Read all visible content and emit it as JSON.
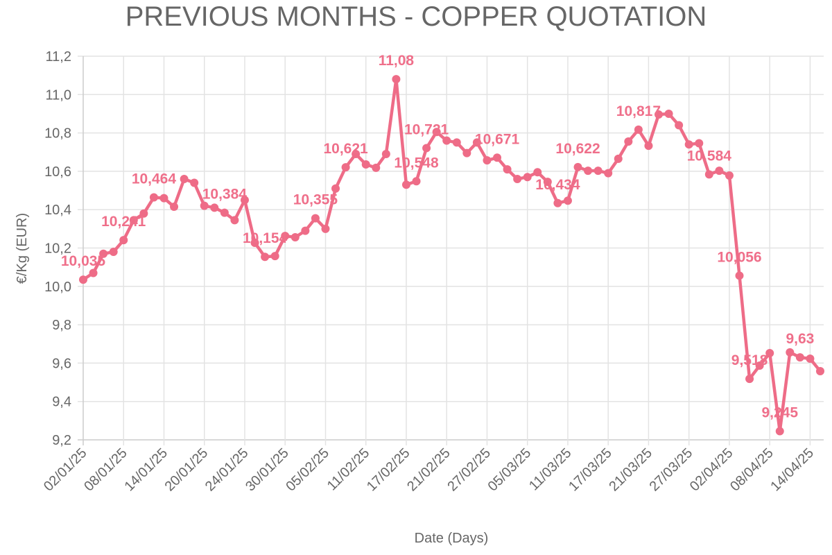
{
  "chart_data": {
    "type": "line",
    "title": "PREVIOUS MONTHS - COPPER QUOTATION",
    "xlabel": "Date (Days)",
    "ylabel": "€/Kg (EUR)",
    "ylim": [
      9.2,
      11.2
    ],
    "yticks": [
      "9,2",
      "9,4",
      "9,6",
      "9,8",
      "10,0",
      "10,2",
      "10,4",
      "10,6",
      "10,8",
      "11,0",
      "11,2"
    ],
    "ytick_values": [
      9.2,
      9.4,
      9.6,
      9.8,
      10.0,
      10.2,
      10.4,
      10.6,
      10.8,
      11.0,
      11.2
    ],
    "grid": true,
    "line_color": "#ee6c87",
    "x": [
      "02/01/25",
      "03/01/25",
      "06/01/25",
      "07/01/25",
      "08/01/25",
      "09/01/25",
      "10/01/25",
      "13/01/25",
      "14/01/25",
      "15/01/25",
      "16/01/25",
      "17/01/25",
      "20/01/25",
      "21/01/25",
      "22/01/25",
      "23/01/25",
      "24/01/25",
      "27/01/25",
      "28/01/25",
      "29/01/25",
      "30/01/25",
      "31/01/25",
      "03/02/25",
      "04/02/25",
      "05/02/25",
      "06/02/25",
      "07/02/25",
      "10/02/25",
      "11/02/25",
      "12/02/25",
      "13/02/25",
      "14/02/25",
      "17/02/25",
      "18/02/25",
      "19/02/25",
      "20/02/25",
      "21/02/25",
      "24/02/25",
      "25/02/25",
      "26/02/25",
      "27/02/25",
      "28/02/25",
      "03/03/25",
      "04/03/25",
      "05/03/25",
      "06/03/25",
      "07/03/25",
      "10/03/25",
      "11/03/25",
      "12/03/25",
      "13/03/25",
      "14/03/25",
      "17/03/25",
      "18/03/25",
      "19/03/25",
      "20/03/25",
      "21/03/25",
      "24/03/25",
      "25/03/25",
      "26/03/25",
      "27/03/25",
      "28/03/25",
      "31/03/25",
      "01/04/25",
      "02/04/25",
      "03/04/25",
      "04/04/25",
      "07/04/25",
      "08/04/25",
      "09/04/25",
      "10/04/25",
      "11/04/25",
      "14/04/25",
      "15/04/25"
    ],
    "xticks": [
      "02/01/25",
      "08/01/25",
      "14/01/25",
      "20/01/25",
      "24/01/25",
      "30/01/25",
      "05/02/25",
      "11/02/25",
      "17/02/25",
      "21/02/25",
      "27/02/25",
      "05/03/25",
      "11/03/25",
      "17/03/25",
      "21/03/25",
      "27/03/25",
      "02/04/25",
      "08/04/25",
      "14/04/25"
    ],
    "values": [
      10.035,
      10.07,
      10.17,
      10.18,
      10.241,
      10.345,
      10.38,
      10.464,
      10.46,
      10.415,
      10.56,
      10.54,
      10.42,
      10.41,
      10.384,
      10.345,
      10.45,
      10.227,
      10.154,
      10.158,
      10.263,
      10.256,
      10.29,
      10.355,
      10.3,
      10.51,
      10.621,
      10.69,
      10.636,
      10.618,
      10.69,
      11.08,
      10.53,
      10.548,
      10.721,
      10.805,
      10.76,
      10.75,
      10.695,
      10.75,
      10.657,
      10.671,
      10.61,
      10.56,
      10.57,
      10.595,
      10.545,
      10.434,
      10.447,
      10.622,
      10.603,
      10.603,
      10.59,
      10.665,
      10.755,
      10.817,
      10.733,
      10.896,
      10.9,
      10.84,
      10.74,
      10.746,
      10.584,
      10.603,
      10.578,
      10.056,
      9.518,
      9.587,
      9.652,
      9.245,
      9.656,
      9.63,
      9.623,
      9.558
    ],
    "data_labels": [
      {
        "date": "02/01/25",
        "text": "10,035"
      },
      {
        "date": "08/01/25",
        "text": "10,241"
      },
      {
        "date": "13/01/25",
        "text": "10,464"
      },
      {
        "date": "22/01/25",
        "text": "10,384"
      },
      {
        "date": "28/01/25",
        "text": "10,154"
      },
      {
        "date": "04/02/25",
        "text": "10,355"
      },
      {
        "date": "07/02/25",
        "text": "10,621"
      },
      {
        "date": "14/02/25",
        "text": "11,08"
      },
      {
        "date": "18/02/25",
        "text": "10,548"
      },
      {
        "date": "19/02/25",
        "text": "10,721"
      },
      {
        "date": "28/02/25",
        "text": "10,671"
      },
      {
        "date": "10/03/25",
        "text": "10,434"
      },
      {
        "date": "12/03/25",
        "text": "10,622"
      },
      {
        "date": "20/03/25",
        "text": "10,817"
      },
      {
        "date": "31/03/25",
        "text": "10,584"
      },
      {
        "date": "03/04/25",
        "text": "10,056"
      },
      {
        "date": "04/04/25",
        "text": "9,518"
      },
      {
        "date": "09/04/25",
        "text": "9,245"
      },
      {
        "date": "11/04/25",
        "text": "9,63"
      }
    ]
  }
}
